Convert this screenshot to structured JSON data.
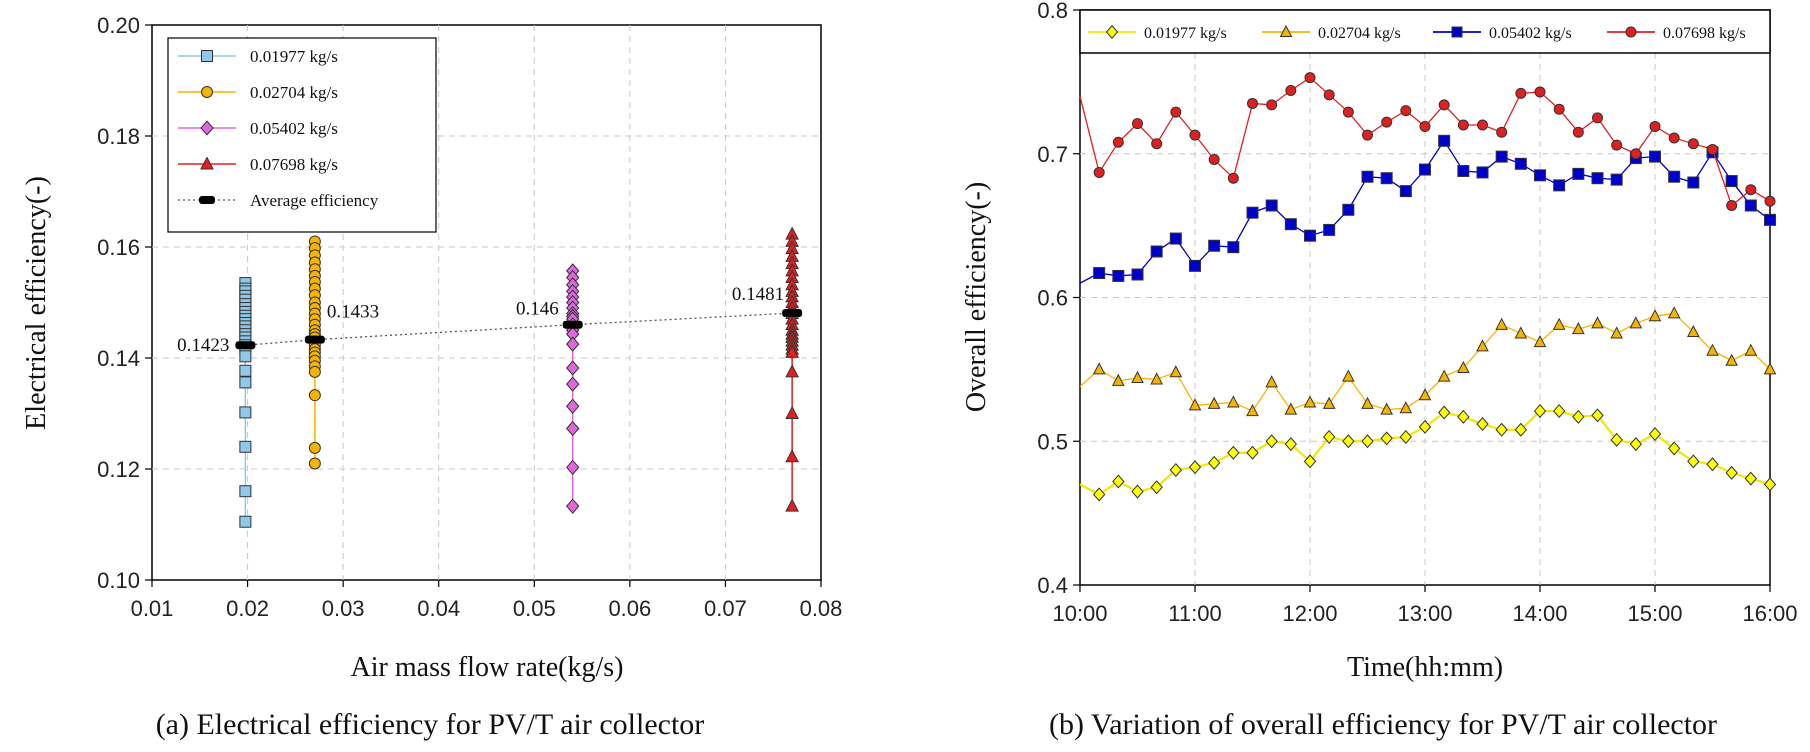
{
  "chart_data": [
    {
      "type": "scatter",
      "caption": "(a) Electrical efficiency for PV/T air collector",
      "xlabel": "Air mass flow rate(kg/s)",
      "ylabel": "Electrical efficiency(-)",
      "xlim": [
        0.01,
        0.08
      ],
      "ylim": [
        0.1,
        0.2
      ],
      "xticks": [
        "0.01",
        "0.02",
        "0.03",
        "0.04",
        "0.05",
        "0.06",
        "0.07",
        "0.08"
      ],
      "yticks": [
        "0.10",
        "0.12",
        "0.14",
        "0.16",
        "0.18",
        "0.20"
      ],
      "grid": true,
      "legend_position": "top-left",
      "series": [
        {
          "name": "0.01977 kg/s",
          "marker": "square",
          "color": "#8ec9ea",
          "x": 0.01977,
          "values": [
            0.1535,
            0.1525,
            0.152,
            0.1512,
            0.1505,
            0.1497,
            0.149,
            0.1483,
            0.1476,
            0.147,
            0.1463,
            0.1457,
            0.145,
            0.1443,
            0.1437,
            0.143,
            0.1423,
            0.1417,
            0.1403,
            0.1377,
            0.1356,
            0.1302,
            0.124,
            0.116,
            0.1105
          ]
        },
        {
          "name": "0.02704 kg/s",
          "marker": "circle",
          "color": "#f5b400",
          "x": 0.02704,
          "values": [
            0.161,
            0.1598,
            0.1585,
            0.1572,
            0.156,
            0.1548,
            0.1537,
            0.1525,
            0.1513,
            0.15,
            0.149,
            0.148,
            0.147,
            0.146,
            0.145,
            0.1443,
            0.1437,
            0.143,
            0.1423,
            0.1416,
            0.141,
            0.1403,
            0.1395,
            0.1385,
            0.1375,
            0.1333,
            0.1238,
            0.121
          ]
        },
        {
          "name": "0.05402 kg/s",
          "marker": "diamond",
          "color": "#e066e0",
          "x": 0.05402,
          "values": [
            0.1557,
            0.1545,
            0.1532,
            0.152,
            0.151,
            0.15,
            0.149,
            0.148,
            0.1475,
            0.147,
            0.146,
            0.145,
            0.1443,
            0.1425,
            0.1382,
            0.1353,
            0.1313,
            0.1273,
            0.1203,
            0.1133
          ]
        },
        {
          "name": "0.07698 kg/s",
          "marker": "triangle",
          "color": "#e02020",
          "x": 0.07698,
          "values": [
            0.1623,
            0.161,
            0.1597,
            0.1583,
            0.157,
            0.1557,
            0.1545,
            0.1532,
            0.152,
            0.151,
            0.15,
            0.149,
            0.148,
            0.147,
            0.146,
            0.145,
            0.1443,
            0.1437,
            0.143,
            0.1423,
            0.1416,
            0.141,
            0.1375,
            0.13,
            0.1222,
            0.1133
          ]
        }
      ],
      "average": {
        "name": "Average efficiency",
        "x": [
          0.01977,
          0.02704,
          0.05402,
          0.07698
        ],
        "values": [
          0.1423,
          0.1433,
          0.146,
          0.1481
        ],
        "labels": [
          "0.1423",
          "0.1433",
          "0.146",
          "0.1481"
        ]
      }
    },
    {
      "type": "line",
      "caption": "(b) Variation of overall efficiency for PV/T air collector",
      "xlabel": "Time(hh:mm)",
      "ylabel": "Overall efficiency(-)",
      "xlim": [
        "10:00",
        "16:00"
      ],
      "ylim": [
        0.4,
        0.8
      ],
      "xticks": [
        "10:00",
        "11:00",
        "12:00",
        "13:00",
        "14:00",
        "15:00",
        "16:00"
      ],
      "yticks": [
        "0.4",
        "0.5",
        "0.6",
        "0.7",
        "0.8"
      ],
      "grid": true,
      "legend_position": "top",
      "x": [
        "10:10",
        "10:20",
        "10:30",
        "10:40",
        "10:50",
        "11:00",
        "11:10",
        "11:20",
        "11:30",
        "11:40",
        "11:50",
        "12:00",
        "12:10",
        "12:20",
        "12:30",
        "12:40",
        "12:50",
        "13:00",
        "13:10",
        "13:20",
        "13:30",
        "13:40",
        "13:50",
        "14:00",
        "14:10",
        "14:20",
        "14:30",
        "14:40",
        "14:50",
        "15:00",
        "15:10",
        "15:20",
        "15:30",
        "15:40",
        "15:50",
        "16:00"
      ],
      "series": [
        {
          "name": "0.01977 kg/s",
          "marker": "diamond",
          "color": "#ffff00",
          "start": 0.47,
          "values": [
            0.463,
            0.472,
            0.465,
            0.468,
            0.48,
            0.482,
            0.485,
            0.492,
            0.492,
            0.5,
            0.498,
            0.486,
            0.503,
            0.5,
            0.5,
            0.502,
            0.503,
            0.51,
            0.52,
            0.517,
            0.512,
            0.508,
            0.508,
            0.521,
            0.521,
            0.517,
            0.518,
            0.501,
            0.498,
            0.505,
            0.495,
            0.486,
            0.484,
            0.478,
            0.474,
            0.47
          ]
        },
        {
          "name": "0.02704 kg/s",
          "marker": "triangle",
          "color": "#f5b400",
          "start": 0.538,
          "values": [
            0.55,
            0.542,
            0.544,
            0.543,
            0.548,
            0.525,
            0.526,
            0.527,
            0.521,
            0.541,
            0.522,
            0.527,
            0.526,
            0.545,
            0.526,
            0.522,
            0.523,
            0.532,
            0.545,
            0.551,
            0.566,
            0.581,
            0.575,
            0.569,
            0.581,
            0.578,
            0.582,
            0.575,
            0.582,
            0.587,
            0.589,
            0.576,
            0.563,
            0.556,
            0.563,
            0.55
          ]
        },
        {
          "name": "0.05402 kg/s",
          "marker": "square",
          "color": "#0000cc",
          "start": 0.61,
          "values": [
            0.617,
            0.615,
            0.616,
            0.632,
            0.641,
            0.622,
            0.636,
            0.635,
            0.659,
            0.664,
            0.651,
            0.643,
            0.647,
            0.661,
            0.684,
            0.683,
            0.674,
            0.689,
            0.709,
            0.688,
            0.687,
            0.698,
            0.693,
            0.685,
            0.678,
            0.686,
            0.683,
            0.682,
            0.697,
            0.698,
            0.684,
            0.68,
            0.701,
            0.681,
            0.664,
            0.654
          ]
        },
        {
          "name": "0.07698 kg/s",
          "marker": "circle",
          "color": "#e02020",
          "start": 0.74,
          "values": [
            0.687,
            0.708,
            0.721,
            0.707,
            0.729,
            0.713,
            0.696,
            0.683,
            0.735,
            0.734,
            0.744,
            0.753,
            0.741,
            0.729,
            0.713,
            0.722,
            0.73,
            0.719,
            0.734,
            0.72,
            0.72,
            0.715,
            0.742,
            0.743,
            0.731,
            0.715,
            0.725,
            0.706,
            0.7,
            0.719,
            0.711,
            0.707,
            0.703,
            0.664,
            0.675,
            0.667
          ]
        }
      ]
    }
  ]
}
